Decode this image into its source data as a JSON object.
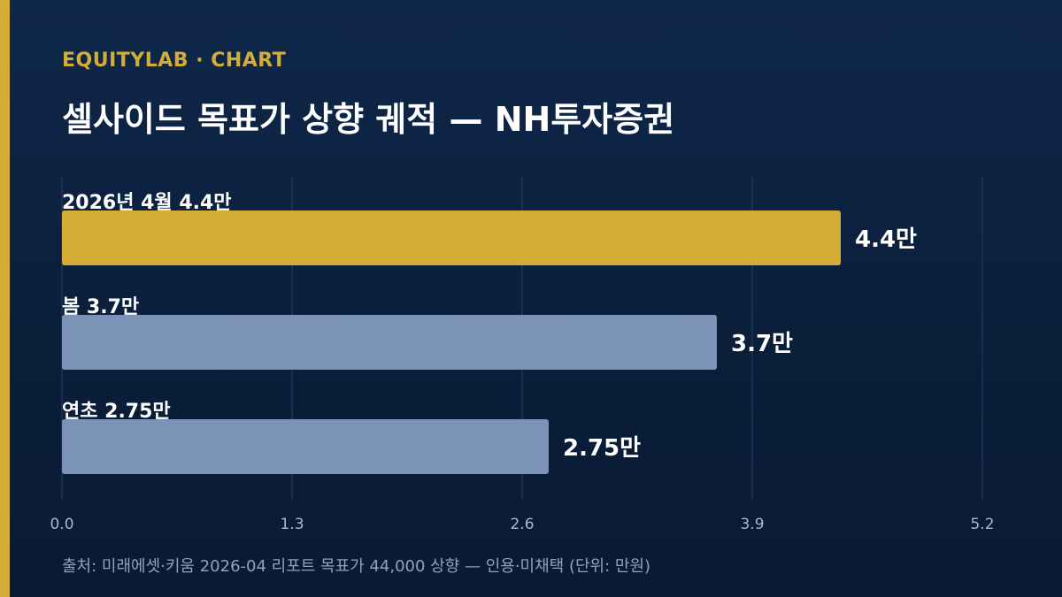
{
  "header": {
    "kicker": "EQUITYLAB · CHART",
    "title": "셀사이드 목표가 상향 궤적 — NH투자증권"
  },
  "footer": {
    "source": "출처: 미래에셋·키움 2026-04 리포트 목표가 44,000 상향 — 인용·미채택 (단위: 만원)"
  },
  "colors": {
    "accent": "#d4ad37",
    "bar_highlight": "#d4ad37",
    "bar_default": "#7b93b6",
    "background": "#0c2140",
    "grid": "#2a4062",
    "tick_text": "#a9b7cc"
  },
  "chart_data": {
    "type": "bar",
    "orientation": "horizontal",
    "categories": [
      "2026년 4월 4.4만",
      "봄 3.7만",
      "연초 2.75만"
    ],
    "values": [
      4.4,
      3.7,
      2.75
    ],
    "value_labels": [
      "4.4만",
      "3.7만",
      "2.75만"
    ],
    "highlight_index": 0,
    "xticks": [
      0.0,
      1.3,
      2.6,
      3.9,
      5.2
    ],
    "xtick_labels": [
      "0.0",
      "1.3",
      "2.6",
      "3.9",
      "5.2"
    ],
    "xlim": [
      0,
      5.2
    ],
    "grid": true,
    "title": "셀사이드 목표가 상향 궤적 — NH투자증권",
    "xlabel": "",
    "ylabel": ""
  }
}
